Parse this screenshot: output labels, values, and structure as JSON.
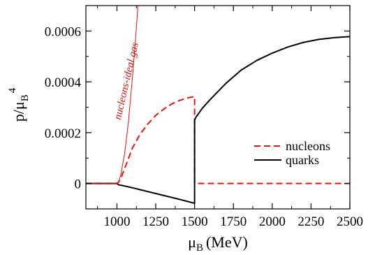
{
  "chart_data": {
    "type": "line",
    "xlabel": "μ",
    "xlabel_sub": "B",
    "xlabel_unit": "(MeV)",
    "ylabel": "p/μ",
    "ylabel_sub": "B",
    "ylabel_sup": "4",
    "xlim": [
      800,
      2500
    ],
    "ylim": [
      -0.0001,
      0.0007
    ],
    "x_ticks": [
      1000,
      1250,
      1500,
      1750,
      2000,
      2250,
      2500
    ],
    "x_tick_labels": [
      "1000",
      "1250",
      "1500",
      "1750",
      "2000",
      "2250",
      "2500"
    ],
    "y_ticks": [
      0,
      0.0002,
      0.0004,
      0.0006
    ],
    "y_tick_labels": [
      "0",
      "0.0002",
      "0.0004",
      "0.0006"
    ],
    "grid": false,
    "legend": {
      "placement": "right",
      "entries": [
        "nucleons",
        "quarks"
      ]
    },
    "series": [
      {
        "name": "nucleons",
        "color": "#e8120f",
        "style": "dashed",
        "x": [
          800,
          1000,
          1010,
          1025,
          1050,
          1075,
          1100,
          1150,
          1200,
          1250,
          1300,
          1350,
          1400,
          1450,
          1500,
          1500,
          1750,
          2000,
          2250,
          2500
        ],
        "y": [
          0,
          0,
          5e-06,
          2e-05,
          6e-05,
          0.0001,
          0.00014,
          0.000195,
          0.000235,
          0.000268,
          0.000292,
          0.000312,
          0.000326,
          0.000336,
          0.000342,
          0,
          0,
          0,
          0,
          0
        ]
      },
      {
        "name": "quarks",
        "color": "#000000",
        "style": "solid",
        "x": [
          800,
          1000,
          1010,
          1050,
          1100,
          1200,
          1300,
          1400,
          1500,
          1500,
          1510,
          1550,
          1600,
          1700,
          1800,
          1900,
          2000,
          2100,
          2200,
          2300,
          2400,
          2500
        ],
        "y": [
          0,
          0,
          -5e-06,
          -1e-05,
          -1.7e-05,
          -3.2e-05,
          -4.7e-05,
          -6.2e-05,
          -7.8e-05,
          0.00025,
          0.000262,
          0.000296,
          0.00033,
          0.000393,
          0.000446,
          0.000484,
          0.000513,
          0.000537,
          0.000555,
          0.000567,
          0.000574,
          0.000578
        ]
      },
      {
        "name": "nucleons-ideal gas",
        "color": "#e8120f",
        "style": "thin-solid",
        "x": [
          800,
          1000,
          1010,
          1025,
          1050,
          1075,
          1100,
          1120,
          1135
        ],
        "y": [
          0,
          0,
          4e-06,
          3.5e-05,
          0.00012,
          0.00025,
          0.00042,
          0.00057,
          0.0007
        ]
      }
    ],
    "annotations": [
      {
        "text": "nucleons-ideal gas",
        "x": 1080,
        "y": 0.0004,
        "rotation": -77,
        "color": "#e8120f"
      }
    ]
  }
}
